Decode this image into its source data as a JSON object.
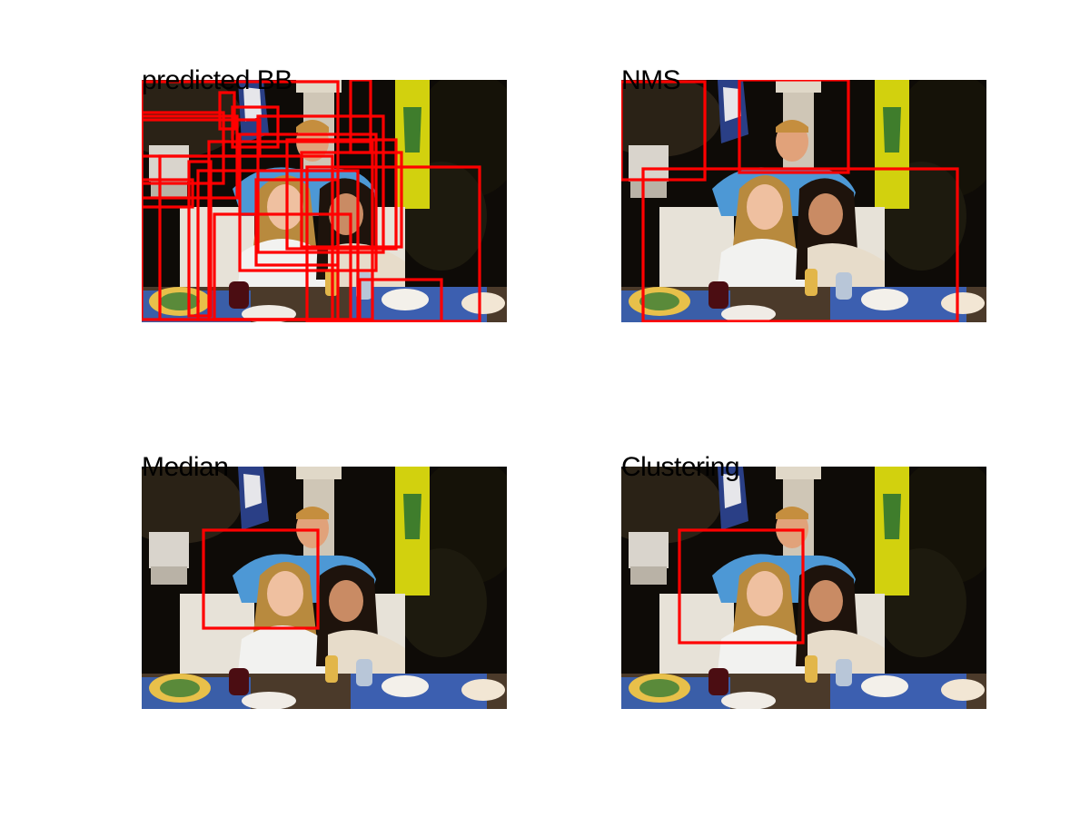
{
  "panels": {
    "top_left": {
      "title": "predicted BB"
    },
    "top_right": {
      "title": "NMS"
    },
    "bottom_left": {
      "title": "Median"
    },
    "bottom_right": {
      "title": "Clustering"
    }
  },
  "colors": {
    "box": "#ff0000",
    "background": "#ffffff"
  },
  "icons": {
    "photo": "photo-of-people-at-dinner-table"
  }
}
